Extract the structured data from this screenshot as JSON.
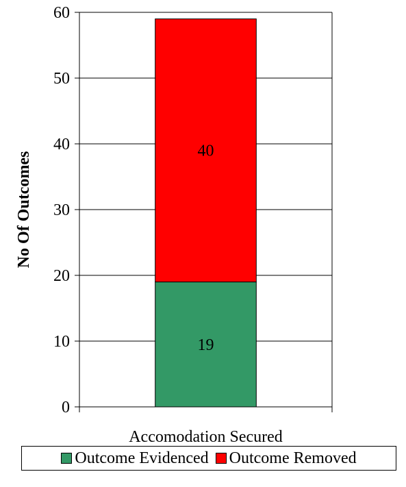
{
  "chart_data": {
    "type": "bar",
    "stacked": true,
    "categories": [
      "Accomodation Secured"
    ],
    "series": [
      {
        "name": "Outcome Evidenced",
        "values": [
          19
        ],
        "color": "#339966"
      },
      {
        "name": "Outcome Removed",
        "values": [
          40
        ],
        "color": "#ff0000"
      }
    ],
    "title": "",
    "xlabel": "",
    "ylabel": "No Of Outcomes",
    "ylim": [
      0,
      60
    ],
    "yticks": [
      0,
      10,
      20,
      30,
      40,
      50,
      60
    ],
    "grid": true,
    "legend_position": "bottom",
    "data_labels": true
  }
}
